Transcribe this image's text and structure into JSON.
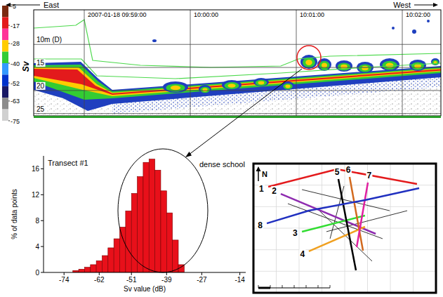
{
  "echogram": {
    "direction_labels": [
      "East",
      "West"
    ],
    "time_ticks": [
      "2007-01-18 09:59:00",
      "10:00:00",
      "10:01:00",
      "10:02:00"
    ],
    "depth_range": [
      2.5,
      25.5
    ],
    "depth_ticks": [
      {
        "value": 10,
        "label": "10m (D)"
      },
      15,
      20,
      25
    ],
    "colorbar": {
      "label": "Sv",
      "range": [
        -75,
        -5
      ],
      "ticks": [
        -5,
        -17,
        -28,
        -40,
        -52,
        -63,
        -75
      ],
      "colors": [
        "#7a2a10",
        "#e31a1c",
        "#ff3399",
        "#ffcc00",
        "#33cc33",
        "#3399ff",
        "#0033cc",
        "#1a1a66",
        "#8c8c8c",
        "#d0d0d0"
      ]
    }
  },
  "chart_data": {
    "type": "histogram",
    "title": "Transect #1",
    "annotation": "dense school",
    "x_label": "Sv value (dB)",
    "y_label": "% of data points",
    "bins": [
      -71,
      -69,
      -67,
      -65,
      -63,
      -61,
      -59,
      -57,
      -55,
      -53,
      -51,
      -49,
      -47,
      -45,
      -43,
      -41,
      -39,
      -37,
      -35,
      -33
    ],
    "values": [
      0.3,
      0.5,
      0.8,
      1.2,
      1.8,
      2.6,
      3.8,
      5.2,
      7.0,
      9.5,
      12.2,
      14.8,
      17.0,
      17.5,
      15.8,
      12.6,
      9.2,
      5.0,
      1.2
    ],
    "color": "#e8101a",
    "xlim": [
      -81,
      -12
    ],
    "xticks": [
      -74,
      -62,
      -51,
      -39,
      -27,
      -14
    ],
    "ylim": [
      0,
      18
    ],
    "yticks": [
      0,
      4,
      8,
      12,
      16
    ],
    "grid": false
  },
  "map": {
    "north_label": "N",
    "extent": [
      0,
      100
    ],
    "transects": [
      {
        "label": "1",
        "color": "#e31a1c",
        "points": [
          [
            7.8,
            82.4
          ],
          [
            45.7,
            96.2
          ],
          [
            89.9,
            84.6
          ]
        ]
      },
      {
        "label": "2",
        "color": "#8e2bb0",
        "points": [
          [
            14.7,
            76.9
          ],
          [
            67.1,
            45.6
          ]
        ]
      },
      {
        "label": "3",
        "color": "#33dd33",
        "points": [
          [
            26.4,
            47.3
          ],
          [
            61.2,
            59.9
          ]
        ]
      },
      {
        "label": "4",
        "color": "#f0a020",
        "points": [
          [
            30.2,
            31.9
          ],
          [
            61.2,
            51.1
          ]
        ]
      },
      {
        "label": "5",
        "color": "#000000",
        "points": [
          [
            46.5,
            88.5
          ],
          [
            56.2,
            17.0
          ]
        ]
      },
      {
        "label": "6",
        "color": "#d2691e",
        "points": [
          [
            52.7,
            90.1
          ],
          [
            60.1,
            32.4
          ]
        ]
      },
      {
        "label": "7",
        "color": "#e020a0",
        "points": [
          [
            62.8,
            85.7
          ],
          [
            56.6,
            35.2
          ]
        ]
      },
      {
        "label": "8",
        "color": "#2030c0",
        "points": [
          [
            7.0,
            53.8
          ],
          [
            30.2,
            63.7
          ],
          [
            61.2,
            72.0
          ],
          [
            91.1,
            81.3
          ]
        ]
      }
    ],
    "other_tracks": [
      [
        [
          18.6,
          69.2
        ],
        [
          70.9,
          41.8
        ]
      ],
      [
        [
          36.0,
          63.7
        ],
        [
          65.1,
          24.2
        ]
      ],
      [
        [
          39.9,
          47.3
        ],
        [
          84.5,
          63.7
        ]
      ],
      [
        [
          49.6,
          83.0
        ],
        [
          41.9,
          41.8
        ]
      ],
      [
        [
          26.4,
          80.2
        ],
        [
          74.8,
          63.7
        ]
      ]
    ]
  }
}
